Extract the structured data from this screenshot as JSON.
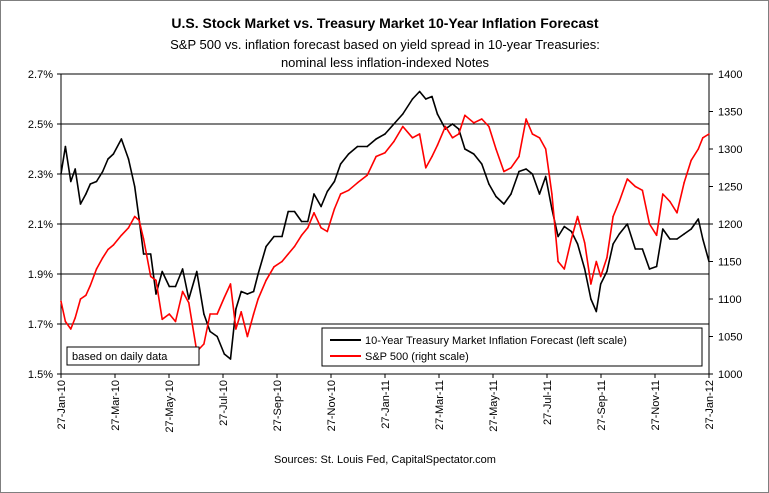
{
  "chart_data": {
    "type": "line",
    "title": "U.S. Stock Market vs. Treasury Market 10-Year Inflation Forecast",
    "subtitle_line1": "S&P 500 vs. inflation forecast based on yield spread in 10-year Treasuries:",
    "subtitle_line2": "nominal less inflation-indexed Notes",
    "note": "based on daily data",
    "source": "Sources:  St. Louis Fed, CapitalSpectator.com",
    "grid": true,
    "legend_placement": "bottom-right",
    "left_axis": {
      "range": [
        1.5,
        2.7
      ],
      "ticks": [
        "1.5%",
        "1.7%",
        "1.9%",
        "2.1%",
        "2.3%",
        "2.5%",
        "2.7%"
      ]
    },
    "right_axis": {
      "range": [
        1000,
        1400
      ],
      "ticks": [
        "1000",
        "1050",
        "1100",
        "1150",
        "1200",
        "1250",
        "1300",
        "1350",
        "1400"
      ]
    },
    "x_axis": {
      "range": [
        "2010-01-27",
        "2012-01-27"
      ],
      "ticks": [
        "27-Jan-10",
        "27-Mar-10",
        "27-May-10",
        "27-Jul-10",
        "27-Sep-10",
        "27-Nov-10",
        "27-Jan-11",
        "27-Mar-11",
        "27-May-11",
        "27-Jul-11",
        "27-Sep-11",
        "27-Nov-11",
        "27-Jan-12"
      ]
    },
    "series": [
      {
        "name": "10-Year Treasury Market Inflation Forecast (left scale)",
        "axis": "left",
        "color": "#000000",
        "x": [
          "2010-01-27",
          "2010-02-01",
          "2010-02-07",
          "2010-02-12",
          "2010-02-18",
          "2010-02-24",
          "2010-03-01",
          "2010-03-08",
          "2010-03-15",
          "2010-03-21",
          "2010-03-27",
          "2010-04-05",
          "2010-04-13",
          "2010-04-20",
          "2010-04-25",
          "2010-04-30",
          "2010-05-08",
          "2010-05-14",
          "2010-05-21",
          "2010-05-29",
          "2010-06-05",
          "2010-06-13",
          "2010-06-20",
          "2010-06-29",
          "2010-07-07",
          "2010-07-14",
          "2010-07-22",
          "2010-07-30",
          "2010-08-06",
          "2010-08-12",
          "2010-08-18",
          "2010-08-25",
          "2010-09-01",
          "2010-09-06",
          "2010-09-15",
          "2010-09-24",
          "2010-10-03",
          "2010-10-10",
          "2010-10-17",
          "2010-10-25",
          "2010-11-01",
          "2010-11-08",
          "2010-11-16",
          "2010-11-23",
          "2010-12-01",
          "2010-12-08",
          "2010-12-17",
          "2010-12-27",
          "2011-01-07",
          "2011-01-17",
          "2011-01-27",
          "2011-02-06",
          "2011-02-16",
          "2011-02-27",
          "2011-03-07",
          "2011-03-14",
          "2011-03-21",
          "2011-03-27",
          "2011-04-05",
          "2011-04-13",
          "2011-04-20",
          "2011-04-27",
          "2011-05-07",
          "2011-05-16",
          "2011-05-24",
          "2011-06-01",
          "2011-06-10",
          "2011-06-18",
          "2011-06-27",
          "2011-07-05",
          "2011-07-12",
          "2011-07-20",
          "2011-07-27",
          "2011-08-03",
          "2011-08-10",
          "2011-08-17",
          "2011-08-25",
          "2011-09-01",
          "2011-09-09",
          "2011-09-16",
          "2011-09-22",
          "2011-09-27",
          "2011-10-04",
          "2011-10-11",
          "2011-10-18",
          "2011-10-27",
          "2011-11-05",
          "2011-11-13",
          "2011-11-21",
          "2011-11-29",
          "2011-12-06",
          "2011-12-14",
          "2011-12-22",
          "2011-12-30",
          "2012-01-07",
          "2012-01-15",
          "2012-01-20",
          "2012-01-27"
        ],
        "values": [
          2.3,
          2.41,
          2.27,
          2.32,
          2.18,
          2.22,
          2.26,
          2.27,
          2.31,
          2.36,
          2.38,
          2.44,
          2.36,
          2.25,
          2.12,
          1.98,
          1.98,
          1.82,
          1.91,
          1.85,
          1.85,
          1.92,
          1.8,
          1.91,
          1.74,
          1.67,
          1.65,
          1.58,
          1.56,
          1.76,
          1.83,
          1.82,
          1.83,
          1.9,
          2.01,
          2.05,
          2.05,
          2.15,
          2.15,
          2.11,
          2.11,
          2.22,
          2.17,
          2.23,
          2.27,
          2.34,
          2.38,
          2.41,
          2.41,
          2.44,
          2.46,
          2.5,
          2.54,
          2.6,
          2.63,
          2.6,
          2.61,
          2.54,
          2.48,
          2.5,
          2.48,
          2.4,
          2.38,
          2.34,
          2.26,
          2.21,
          2.18,
          2.22,
          2.31,
          2.32,
          2.3,
          2.22,
          2.29,
          2.16,
          2.05,
          2.09,
          2.07,
          2.02,
          1.92,
          1.8,
          1.75,
          1.86,
          1.91,
          2.02,
          2.06,
          2.1,
          2.0,
          2.0,
          1.92,
          1.93,
          2.08,
          2.04,
          2.04,
          2.06,
          2.08,
          2.12,
          2.04,
          1.95
        ]
      },
      {
        "name": "S&P 500 (right scale)",
        "axis": "right",
        "color": "#ff0000",
        "x": [
          "2010-01-27",
          "2010-02-01",
          "2010-02-07",
          "2010-02-12",
          "2010-02-18",
          "2010-02-24",
          "2010-03-01",
          "2010-03-08",
          "2010-03-15",
          "2010-03-21",
          "2010-03-27",
          "2010-04-05",
          "2010-04-13",
          "2010-04-20",
          "2010-04-25",
          "2010-04-30",
          "2010-05-08",
          "2010-05-14",
          "2010-05-21",
          "2010-05-29",
          "2010-06-05",
          "2010-06-13",
          "2010-06-20",
          "2010-06-29",
          "2010-07-07",
          "2010-07-14",
          "2010-07-22",
          "2010-07-30",
          "2010-08-06",
          "2010-08-12",
          "2010-08-18",
          "2010-08-25",
          "2010-09-01",
          "2010-09-06",
          "2010-09-15",
          "2010-09-24",
          "2010-10-03",
          "2010-10-10",
          "2010-10-17",
          "2010-10-25",
          "2010-11-01",
          "2010-11-08",
          "2010-11-16",
          "2010-11-23",
          "2010-12-01",
          "2010-12-08",
          "2010-12-17",
          "2010-12-27",
          "2011-01-07",
          "2011-01-17",
          "2011-01-27",
          "2011-02-06",
          "2011-02-16",
          "2011-02-27",
          "2011-03-07",
          "2011-03-14",
          "2011-03-21",
          "2011-03-27",
          "2011-04-05",
          "2011-04-13",
          "2011-04-20",
          "2011-04-27",
          "2011-05-07",
          "2011-05-16",
          "2011-05-24",
          "2011-06-01",
          "2011-06-10",
          "2011-06-18",
          "2011-06-27",
          "2011-07-05",
          "2011-07-12",
          "2011-07-20",
          "2011-07-27",
          "2011-08-03",
          "2011-08-10",
          "2011-08-17",
          "2011-08-25",
          "2011-09-01",
          "2011-09-09",
          "2011-09-16",
          "2011-09-22",
          "2011-09-27",
          "2011-10-04",
          "2011-10-11",
          "2011-10-18",
          "2011-10-27",
          "2011-11-05",
          "2011-11-13",
          "2011-11-21",
          "2011-11-29",
          "2011-12-06",
          "2011-12-14",
          "2011-12-22",
          "2011-12-30",
          "2012-01-07",
          "2012-01-15",
          "2012-01-20",
          "2012-01-27"
        ],
        "values": [
          1097,
          1070,
          1060,
          1075,
          1100,
          1105,
          1118,
          1140,
          1155,
          1166,
          1172,
          1185,
          1195,
          1210,
          1205,
          1180,
          1130,
          1125,
          1073,
          1080,
          1070,
          1110,
          1095,
          1030,
          1040,
          1080,
          1080,
          1102,
          1120,
          1060,
          1083,
          1050,
          1080,
          1100,
          1125,
          1143,
          1150,
          1160,
          1170,
          1185,
          1195,
          1215,
          1195,
          1190,
          1220,
          1240,
          1245,
          1255,
          1265,
          1290,
          1295,
          1310,
          1330,
          1315,
          1320,
          1275,
          1290,
          1305,
          1330,
          1315,
          1320,
          1345,
          1335,
          1340,
          1330,
          1300,
          1270,
          1275,
          1290,
          1340,
          1320,
          1315,
          1300,
          1240,
          1150,
          1140,
          1180,
          1210,
          1175,
          1120,
          1150,
          1130,
          1155,
          1210,
          1230,
          1260,
          1250,
          1245,
          1200,
          1185,
          1240,
          1230,
          1215,
          1255,
          1285,
          1300,
          1315,
          1320
        ]
      }
    ]
  }
}
